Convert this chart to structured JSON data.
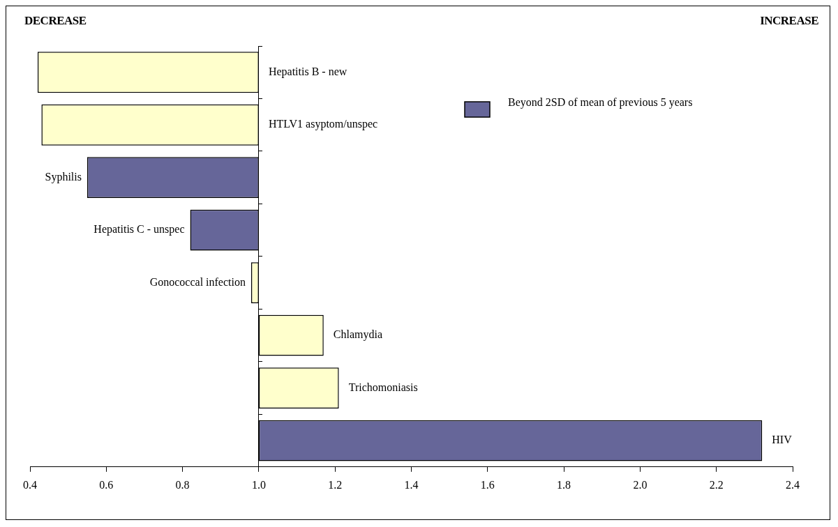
{
  "chart_data": {
    "type": "bar",
    "orientation": "horizontal",
    "categories": [
      "Hepatitis B - new",
      "HTLV1 asyptom/unspec",
      "Syphilis",
      "Hepatitis C - unspec",
      "Gonococcal infection",
      "Chlamydia",
      "Trichomoniasis",
      "HIV"
    ],
    "series": [
      {
        "color": "#ffffcc",
        "base": [
          1,
          1,
          null,
          null,
          1,
          1,
          1,
          null
        ],
        "values": [
          -0.58,
          -0.57,
          null,
          null,
          -0.02,
          0.17,
          0.21,
          null
        ]
      },
      {
        "name": "Beyond 2SD of mean of previous 5 years",
        "color": "#666699",
        "base": [
          null,
          null,
          1,
          1,
          null,
          null,
          null,
          1
        ],
        "values": [
          null,
          null,
          -0.45,
          -0.18,
          null,
          null,
          null,
          1.32
        ]
      }
    ],
    "xlim": [
      0.4,
      2.4
    ],
    "xticks": [
      0.4,
      0.6,
      0.8,
      {
        "value": 1.0,
        "label": "1.0"
      },
      1.2,
      1.4,
      1.6,
      1.8,
      {
        "value": 2.0,
        "label": "2.0"
      },
      2.2,
      2.4
    ],
    "legend": "top right",
    "grid": false,
    "annotations": [
      "DECREASE",
      "INCREASE"
    ]
  }
}
